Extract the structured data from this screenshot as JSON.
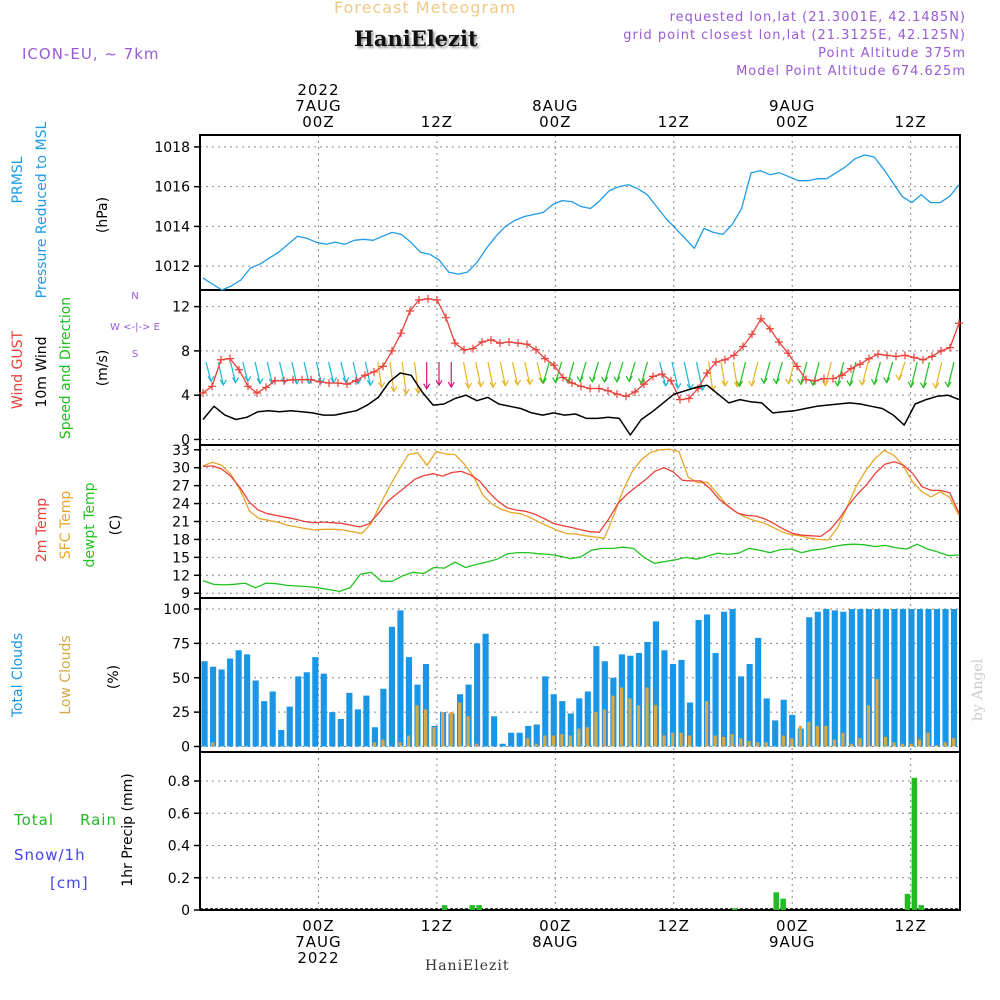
{
  "header": {
    "title": "Forecast Meteogram",
    "place": "HaniElezit",
    "model": "ICON-EU, ~ 7km",
    "requested": "requested lon,lat (21.3001E, 42.1485N)",
    "grid_point": "grid point closest lon,lat (21.3125E, 42.125N)",
    "point_altitude": "Point Altitude 375m",
    "model_altitude": "Model Point Altitude 674.625m",
    "footer": "HaniElezit",
    "watermark": "by Angel"
  },
  "colors": {
    "pressure": "#1f9be6",
    "gust": "#e8413a",
    "wind": "#000000",
    "arrow_green": "#1fbf1f",
    "arrow_yellow": "#e6b422",
    "arrow_cyan": "#1cb5d6",
    "arrow_magenta": "#d6147a",
    "temp": "#e8413a",
    "sfc_temp": "#e6a628",
    "dewpt": "#22c422",
    "total_clouds": "#1a96e6",
    "low_clouds": "#d4a847",
    "rain": "#22bb22",
    "snow": "#4444ee",
    "purple": "#9a5ad6"
  },
  "chart_data": [
    {
      "type": "line",
      "panel": "pressure",
      "ylabel_lines": [
        "PRMSL",
        "Pressure Reduced to MSL"
      ],
      "unit": "(hPa)",
      "yticks": [
        1012,
        1014,
        1016,
        1018
      ],
      "ylim": [
        1010.8,
        1018.6
      ],
      "series": [
        {
          "name": "PRMSL",
          "values": [
            1011.4,
            1011.1,
            1010.8,
            1011.0,
            1011.3,
            1011.9,
            1012.1,
            1012.4,
            1012.7,
            1013.1,
            1013.5,
            1013.4,
            1013.2,
            1013.1,
            1013.2,
            1013.1,
            1013.3,
            1013.35,
            1013.3,
            1013.5,
            1013.7,
            1013.6,
            1013.2,
            1012.7,
            1012.6,
            1012.3,
            1011.7,
            1011.6,
            1011.7,
            1012.2,
            1012.9,
            1013.5,
            1014.0,
            1014.3,
            1014.5,
            1014.6,
            1014.7,
            1015.1,
            1015.3,
            1015.25,
            1015.0,
            1014.9,
            1015.3,
            1015.8,
            1016.0,
            1016.1,
            1015.9,
            1015.6,
            1015.0,
            1014.4,
            1013.9,
            1013.4,
            1012.9,
            1013.9,
            1013.7,
            1013.6,
            1014.1,
            1014.9,
            1016.7,
            1016.8,
            1016.6,
            1016.7,
            1016.5,
            1016.3,
            1016.3,
            1016.4,
            1016.4,
            1016.7,
            1017.0,
            1017.4,
            1017.6,
            1017.5,
            1016.9,
            1016.2,
            1015.5,
            1015.2,
            1015.6,
            1015.2,
            1015.2,
            1015.5,
            1016.1
          ]
        }
      ]
    },
    {
      "type": "line",
      "panel": "wind",
      "ylabel_lines": [
        "Wind GUST",
        "10m Wind",
        "Speed and Direction"
      ],
      "unit": "(m/s)",
      "compass": [
        "N",
        "W <-|-> E",
        "S"
      ],
      "yticks": [
        0,
        4,
        8,
        12
      ],
      "ylim": [
        -0.5,
        13.5
      ],
      "series": [
        {
          "name": "Wind GUST",
          "values": [
            4.2,
            4.8,
            7.2,
            7.3,
            6.3,
            4.8,
            4.2,
            4.7,
            5.3,
            5.3,
            5.4,
            5.4,
            5.4,
            5.2,
            5.1,
            5.1,
            5.0,
            5.3,
            5.8,
            6.1,
            6.6,
            8.0,
            9.6,
            11.6,
            12.6,
            12.7,
            12.6,
            11.0,
            8.7,
            8.1,
            8.2,
            8.8,
            9.0,
            8.7,
            8.8,
            8.7,
            8.6,
            8.1,
            7.3,
            6.7,
            5.6,
            5.1,
            4.8,
            4.6,
            4.6,
            4.4,
            4.1,
            3.9,
            4.3,
            5.0,
            5.7,
            5.9,
            5.3,
            3.6,
            3.7,
            4.6,
            6.0,
            7.0,
            7.2,
            7.6,
            8.4,
            9.5,
            10.9,
            10.0,
            8.8,
            7.8,
            6.6,
            5.4,
            5.3,
            5.5,
            5.5,
            5.8,
            6.4,
            6.8,
            7.3,
            7.7,
            7.6,
            7.5,
            7.6,
            7.4,
            7.2,
            7.5,
            8.0,
            8.3,
            10.5
          ]
        },
        {
          "name": "10m Wind",
          "values": [
            1.8,
            3.0,
            2.2,
            1.8,
            2.0,
            2.5,
            2.6,
            2.5,
            2.6,
            2.5,
            2.4,
            2.2,
            2.2,
            2.4,
            2.6,
            3.1,
            3.8,
            5.2,
            6.0,
            5.8,
            4.3,
            3.1,
            3.2,
            3.7,
            4.0,
            3.5,
            3.8,
            3.2,
            3.0,
            2.8,
            2.4,
            2.2,
            2.4,
            2.2,
            2.3,
            1.9,
            1.9,
            2.0,
            1.9,
            0.4,
            1.8,
            2.5,
            3.3,
            4.1,
            4.4,
            4.7,
            4.9,
            4.1,
            3.3,
            3.6,
            3.4,
            3.3,
            2.4,
            2.5,
            2.6,
            2.8,
            3.0,
            3.1,
            3.2,
            3.3,
            3.2,
            3.0,
            2.8,
            2.2,
            1.3,
            3.2,
            3.6,
            3.9,
            4.0,
            3.6
          ]
        }
      ]
    },
    {
      "type": "line",
      "panel": "temperature",
      "ylabel_lines": [
        "2m Temp",
        "SFC Temp",
        "dewpt Temp"
      ],
      "unit": "(C)",
      "yticks": [
        9,
        12,
        15,
        18,
        21,
        24,
        27,
        30,
        33
      ],
      "ylim": [
        8.2,
        33.8
      ],
      "series": [
        {
          "name": "2m Temp",
          "values": [
            30.2,
            30.3,
            29.8,
            28.6,
            26.7,
            24.3,
            22.9,
            22.3,
            22.0,
            21.7,
            21.4,
            21.0,
            20.8,
            20.9,
            20.8,
            20.7,
            20.4,
            20.1,
            20.6,
            22.3,
            24.3,
            25.6,
            26.8,
            28.1,
            28.7,
            29.0,
            28.6,
            29.2,
            29.4,
            28.8,
            27.8,
            25.9,
            24.4,
            23.3,
            22.9,
            22.7,
            22.2,
            21.5,
            20.7,
            20.3,
            20.0,
            19.6,
            19.3,
            19.2,
            21.4,
            24.0,
            25.6,
            26.8,
            28.0,
            29.4,
            30.0,
            29.3,
            27.9,
            27.8,
            27.8,
            26.5,
            24.7,
            23.5,
            22.4,
            22.0,
            21.9,
            21.4,
            20.6,
            19.7,
            19.0,
            18.7,
            18.6,
            18.5,
            19.6,
            21.4,
            23.7,
            25.6,
            27.2,
            29.2,
            30.6,
            31.0,
            30.4,
            29.0,
            26.8,
            26.2,
            26.2,
            25.8,
            22.4
          ]
        },
        {
          "name": "SFC Temp",
          "values": [
            30.3,
            30.9,
            30.4,
            28.9,
            26.2,
            22.7,
            21.5,
            21.2,
            20.9,
            20.4,
            20.1,
            19.8,
            19.6,
            19.7,
            19.7,
            19.6,
            19.3,
            19.0,
            20.6,
            23.9,
            26.9,
            29.6,
            32.2,
            32.5,
            30.4,
            32.7,
            32.3,
            32.2,
            30.6,
            28.5,
            25.4,
            23.9,
            23.0,
            22.5,
            22.3,
            21.7,
            20.9,
            20.2,
            19.5,
            19.0,
            18.9,
            18.6,
            18.4,
            18.2,
            22.0,
            26.2,
            29.4,
            31.4,
            32.6,
            33.0,
            33.1,
            32.7,
            28.4,
            27.5,
            27.6,
            25.9,
            24.0,
            22.7,
            21.8,
            21.2,
            20.8,
            20.1,
            19.3,
            18.8,
            18.6,
            18.2,
            18.0,
            17.9,
            20.0,
            23.4,
            26.9,
            29.5,
            31.5,
            32.9,
            32.1,
            30.4,
            27.7,
            26.0,
            25.1,
            26.0,
            25.0,
            22.0
          ]
        },
        {
          "name": "dewpt Temp",
          "values": [
            11.1,
            10.5,
            10.4,
            10.5,
            10.7,
            9.9,
            10.7,
            10.6,
            10.3,
            10.2,
            10.1,
            9.9,
            9.6,
            9.3,
            9.9,
            12.2,
            12.5,
            11.0,
            11.0,
            11.9,
            12.5,
            12.3,
            13.3,
            13.2,
            14.2,
            13.3,
            13.8,
            14.2,
            14.7,
            15.6,
            15.8,
            15.8,
            15.6,
            15.5,
            15.2,
            14.8,
            15.1,
            16.2,
            16.5,
            16.5,
            16.7,
            16.5,
            15.0,
            14.0,
            14.3,
            14.6,
            15.0,
            14.7,
            15.2,
            15.7,
            15.5,
            15.7,
            16.5,
            16.2,
            15.8,
            16.3,
            16.4,
            15.8,
            16.2,
            16.4,
            16.8,
            17.1,
            17.2,
            17.1,
            16.8,
            17.0,
            16.6,
            16.4,
            17.2,
            16.4,
            15.9,
            15.3,
            15.4
          ]
        }
      ]
    },
    {
      "type": "bar",
      "panel": "clouds",
      "ylabel_lines": [
        "Total Clouds",
        "Low Clouds"
      ],
      "unit": "(%)",
      "yticks": [
        0,
        25,
        50,
        75,
        100
      ],
      "ylim": [
        -4,
        108
      ],
      "series": [
        {
          "name": "Total Clouds",
          "values": [
            62,
            58,
            56,
            64,
            70,
            67,
            48,
            33,
            40,
            12,
            29,
            51,
            54,
            65,
            53,
            25,
            20,
            39,
            27,
            37,
            14,
            42,
            87,
            99,
            65,
            45,
            60,
            15,
            25,
            24,
            38,
            45,
            75,
            82,
            22,
            2,
            10,
            10,
            15,
            16,
            51,
            38,
            33,
            24,
            35,
            40,
            73,
            62,
            50,
            67,
            66,
            68,
            76,
            91,
            70,
            60,
            63,
            32,
            92,
            96,
            68,
            98,
            100,
            51,
            60,
            79,
            35,
            19,
            34,
            23,
            13,
            94,
            98,
            100,
            99,
            98,
            100,
            100,
            100,
            100,
            100,
            100,
            100,
            100,
            100,
            100,
            100,
            100,
            100
          ]
        },
        {
          "name": "Low Clouds",
          "values": [
            0,
            3,
            0,
            0,
            0,
            0,
            0,
            0,
            0,
            0,
            0,
            0,
            0,
            0,
            0,
            0,
            0,
            0,
            0,
            0,
            3,
            5,
            0,
            3,
            8,
            30,
            27,
            14,
            25,
            25,
            32,
            22,
            2,
            0,
            0,
            0,
            0,
            0,
            6,
            2,
            8,
            8,
            9,
            8,
            13,
            14,
            25,
            27,
            37,
            43,
            35,
            30,
            43,
            30,
            8,
            10,
            10,
            8,
            0,
            33,
            8,
            7,
            9,
            6,
            4,
            3,
            3,
            0,
            8,
            6,
            15,
            18,
            15,
            15,
            5,
            10,
            2,
            6,
            30,
            49,
            7,
            3,
            2,
            2,
            5,
            10,
            1,
            3,
            6
          ]
        }
      ]
    },
    {
      "type": "bar",
      "panel": "precip",
      "ylabel_lines": [
        "1hr Precip (mm)"
      ],
      "side_labels": [
        "Total",
        "Rain",
        "Snow/1h",
        "[cm]"
      ],
      "yticks": [
        0,
        0.2,
        0.4,
        0.6,
        0.8
      ],
      "ylim": [
        0,
        0.98
      ],
      "series": [
        {
          "name": "Total Rain",
          "x": [
            35,
            39,
            40,
            77,
            83,
            84,
            102,
            103,
            104
          ],
          "values": [
            0.03,
            0.03,
            0.03,
            0.01,
            0.11,
            0.07,
            0.1,
            0.82,
            0.03
          ]
        }
      ]
    }
  ],
  "time_axis": {
    "top_labels": [
      {
        "hour": 12,
        "lines": [
          "2022",
          "7AUG",
          "00Z"
        ]
      },
      {
        "hour": 24,
        "lines": [
          "12Z"
        ]
      },
      {
        "hour": 36,
        "lines": [
          "8AUG",
          "00Z"
        ]
      },
      {
        "hour": 48,
        "lines": [
          "12Z"
        ]
      },
      {
        "hour": 60,
        "lines": [
          "9AUG",
          "00Z"
        ]
      },
      {
        "hour": 72,
        "lines": [
          "12Z"
        ]
      }
    ],
    "bottom_labels": [
      {
        "hour": 12,
        "lines": [
          "00Z",
          "7AUG",
          "2022"
        ]
      },
      {
        "hour": 24,
        "lines": [
          "12Z"
        ]
      },
      {
        "hour": 36,
        "lines": [
          "00Z",
          "8AUG"
        ]
      },
      {
        "hour": 48,
        "lines": [
          "12Z"
        ]
      },
      {
        "hour": 60,
        "lines": [
          "00Z",
          "9AUG"
        ]
      },
      {
        "hour": 72,
        "lines": [
          "12Z"
        ]
      }
    ]
  }
}
